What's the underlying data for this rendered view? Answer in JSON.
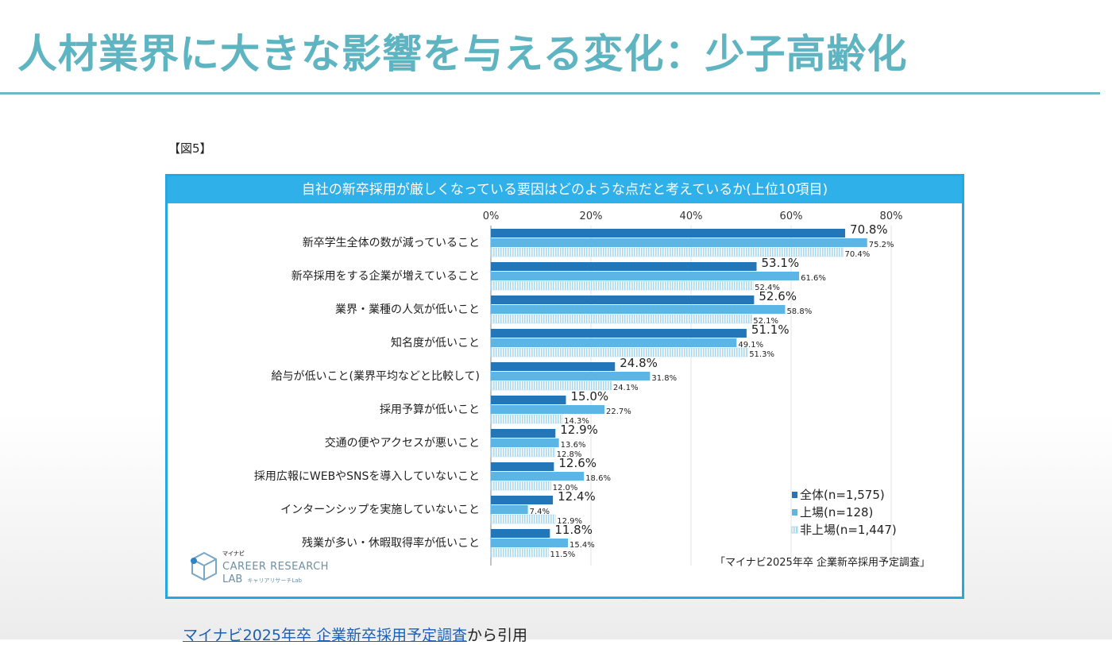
{
  "slide_title": "人材業界に大きな影響を与える変化：少子高齢化",
  "figure_label": "【図5】",
  "chart_header": "自社の新卒採用が厳しくなっている要因はどのような点だと考えているか(上位10項目)",
  "source_note": "「マイナビ2025年卒 企業新卒採用予定調査」",
  "footer": {
    "link_text": "マイナビ2025年卒 企業新卒採用予定調査",
    "suffix": "から引用"
  },
  "logo": {
    "small": "マイナビ",
    "line1": "CAREER RESEARCH",
    "line2": "LAB",
    "line2_small": "キャリアリサーチLab"
  },
  "colors": {
    "series_all": "#2377b8",
    "series_listed": "#5bb6e6",
    "series_unlisted": "#a9d8ef",
    "frame": "#27a7e1",
    "title": "#5eb5c1"
  },
  "chart_data": {
    "type": "bar",
    "orientation": "horizontal",
    "title": "自社の新卒採用が厳しくなっている要因はどのような点だと考えているか(上位10項目)",
    "xlim": [
      0,
      80
    ],
    "x_ticks": [
      "0%",
      "20%",
      "40%",
      "60%",
      "80%"
    ],
    "grid": true,
    "legend_position": "bottom-right",
    "categories": [
      "新卒学生全体の数が減っていること",
      "新卒採用をする企業が増えていること",
      "業界・業種の人気が低いこと",
      "知名度が低いこと",
      "給与が低いこと(業界平均などと比較して)",
      "採用予算が低いこと",
      "交通の便やアクセスが悪いこと",
      "採用広報にWEBやSNSを導入していないこと",
      "インターンシップを実施していないこと",
      "残業が多い・休暇取得率が低いこと"
    ],
    "series": [
      {
        "name": "全体(n=1,575)",
        "values": [
          70.8,
          53.1,
          52.6,
          51.1,
          24.8,
          15.0,
          12.9,
          12.6,
          12.4,
          11.8
        ]
      },
      {
        "name": "上場(n=128)",
        "values": [
          75.2,
          61.6,
          58.8,
          49.1,
          31.8,
          22.7,
          13.6,
          18.6,
          7.4,
          15.4
        ]
      },
      {
        "name": "非上場(n=1,447)",
        "values": [
          70.4,
          52.4,
          52.1,
          51.3,
          24.1,
          14.3,
          12.8,
          12.0,
          12.9,
          11.5
        ]
      }
    ]
  }
}
